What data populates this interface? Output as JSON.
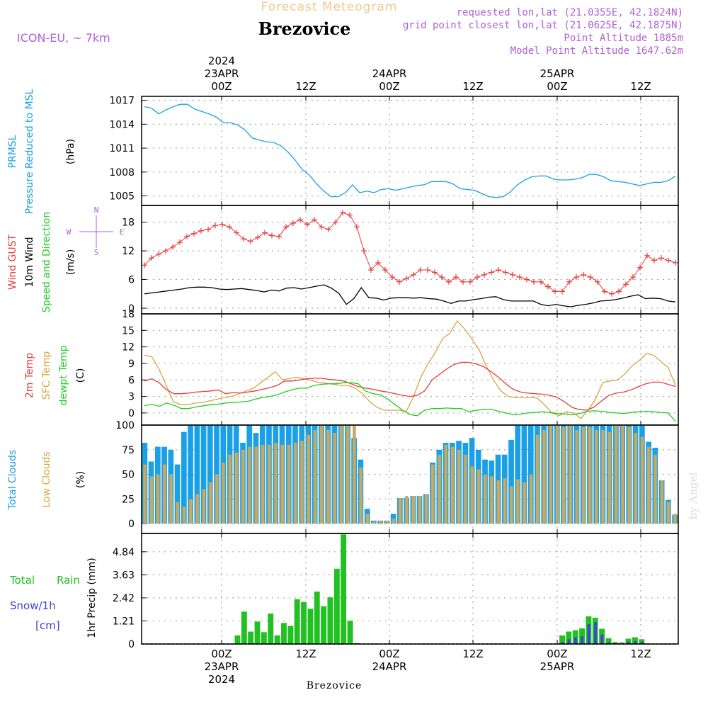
{
  "header": {
    "subtitle": "Forecast Meteogram",
    "location": "Brezovice",
    "model": "ICON-EU, ~ 7km",
    "requested": "requested lon,lat (21.0355E, 42.1824N)",
    "gridpoint": "grid point closest lon,lat (21.0625E, 42.1875N)",
    "point_altitude": "Point Altitude 1885m",
    "model_altitude": "Model Point Altitude 1647.62m"
  },
  "time_axis": {
    "ticks": [
      "00Z",
      "12Z",
      "00Z",
      "12Z",
      "00Z",
      "12Z"
    ],
    "dates": [
      "23APR",
      "24APR",
      "25APR"
    ],
    "year": "2024"
  },
  "footer_label": "Brezovice",
  "watermark": "by Angel",
  "colors": {
    "pressure": "#1aa0e6",
    "gust": "#e63c3c",
    "wind": "#000000",
    "temp2m": "#e63c3c",
    "sfc": "#daa540",
    "dewpt": "#22cc22",
    "total_clouds": "#1aa0e6",
    "low_clouds": "#c9a860",
    "rain": "#22c122",
    "snow": "#4040e0",
    "label_purple": "#b060d8"
  },
  "chart_data": [
    {
      "type": "line",
      "panel": "pressure",
      "ylabels": [
        "PRMSL",
        "Pressure Reduced to MSL",
        "(hPa)"
      ],
      "yticks": [
        "1017",
        "1014",
        "1011",
        "1008",
        "1005"
      ],
      "ylim": [
        1003.8,
        1017.5
      ],
      "series": [
        {
          "name": "PRMSL",
          "values": [
            1016.2,
            1016.0,
            1015.3,
            1015.8,
            1016.2,
            1016.5,
            1016.5,
            1015.9,
            1015.6,
            1015.3,
            1014.9,
            1014.2,
            1014.2,
            1013.9,
            1013.3,
            1012.3,
            1012.0,
            1011.8,
            1011.7,
            1011.3,
            1010.5,
            1009.5,
            1008.3,
            1007.6,
            1006.5,
            1005.6,
            1004.9,
            1004.9,
            1005.4,
            1006.4,
            1005.4,
            1005.6,
            1005.4,
            1005.8,
            1005.9,
            1005.7,
            1005.9,
            1006.1,
            1006.3,
            1006.4,
            1006.8,
            1006.8,
            1006.8,
            1006.5,
            1005.9,
            1005.8,
            1005.7,
            1005.3,
            1004.9,
            1004.8,
            1004.9,
            1005.5,
            1006.4,
            1007.0,
            1007.4,
            1007.5,
            1007.5,
            1007.1,
            1007.0,
            1007.0,
            1007.1,
            1007.3,
            1007.7,
            1007.7,
            1007.4,
            1006.9,
            1006.8,
            1006.7,
            1006.5,
            1006.3,
            1006.5,
            1006.7,
            1006.7,
            1006.9,
            1007.5
          ]
        }
      ]
    },
    {
      "type": "line",
      "panel": "wind",
      "ylabels": [
        "Wind GUST",
        "10m Wind",
        "Speed and Direction",
        "(m/s)"
      ],
      "compass": [
        "N",
        "W",
        "E",
        "S"
      ],
      "yticks": [
        "18",
        "12",
        "6",
        "0"
      ],
      "ylim": [
        0,
        21.5
      ],
      "series": [
        {
          "name": "Wind GUST",
          "values": [
            9.0,
            10.5,
            11.3,
            12.0,
            12.8,
            13.8,
            15.0,
            15.6,
            16.2,
            16.5,
            17.3,
            17.5,
            17.0,
            15.8,
            14.5,
            14.0,
            14.8,
            15.8,
            15.2,
            15.0,
            17.0,
            17.8,
            18.5,
            17.5,
            18.5,
            17.0,
            16.5,
            18.0,
            20.0,
            19.5,
            17.0,
            12.0,
            8.0,
            9.5,
            8.0,
            6.5,
            5.5,
            6.2,
            7.0,
            8.0,
            8.0,
            7.5,
            6.5,
            5.5,
            6.5,
            5.5,
            5.5,
            6.5,
            7.0,
            7.5,
            8.0,
            7.5,
            7.0,
            6.5,
            6.0,
            5.5,
            5.5,
            4.5,
            3.5,
            3.5,
            5.5,
            6.5,
            7.0,
            6.5,
            5.5,
            3.5,
            3.0,
            3.5,
            5.0,
            6.5,
            8.5,
            11.0,
            10.0,
            10.5,
            10.0,
            9.5
          ]
        },
        {
          "name": "10m Wind",
          "values": [
            3.0,
            3.2,
            3.4,
            3.6,
            3.8,
            4.0,
            4.3,
            4.4,
            4.4,
            4.3,
            4.0,
            3.9,
            4.0,
            4.1,
            3.9,
            3.7,
            3.4,
            3.8,
            3.6,
            4.2,
            4.3,
            4.0,
            4.3,
            4.6,
            4.9,
            4.2,
            3.1,
            0.8,
            2.0,
            4.3,
            2.2,
            2.1,
            1.7,
            2.1,
            2.2,
            2.2,
            2.1,
            2.2,
            2.0,
            1.9,
            1.5,
            1.0,
            1.5,
            1.5,
            1.8,
            2.0,
            2.3,
            2.4,
            1.8,
            1.5,
            1.5,
            1.5,
            1.5,
            0.8,
            0.5,
            0.8,
            0.5,
            0.3,
            0.6,
            0.8,
            1.1,
            1.5,
            1.6,
            1.8,
            2.1,
            2.5,
            2.8,
            2.0,
            2.1,
            2.0,
            1.5,
            1.3
          ]
        }
      ]
    },
    {
      "type": "line",
      "panel": "temperature",
      "ylabels": [
        "2m Temp",
        "SFC Temp",
        "dewpt Temp",
        "(C)"
      ],
      "yticks": [
        "18",
        "15",
        "12",
        "9",
        "6",
        "3",
        "0"
      ],
      "ylim": [
        -2.2,
        18
      ],
      "series": [
        {
          "name": "2m Temp",
          "values": [
            5.8,
            6.2,
            5.5,
            4.2,
            3.5,
            3.5,
            3.6,
            3.8,
            3.9,
            4.0,
            4.2,
            3.5,
            3.7,
            3.6,
            3.8,
            4.0,
            4.3,
            4.6,
            5.0,
            5.8,
            5.8,
            6.0,
            6.2,
            6.3,
            6.3,
            6.1,
            6.0,
            5.8,
            5.3,
            4.8,
            4.5,
            4.3,
            4.0,
            3.8,
            3.5,
            3.2,
            3.0,
            3.2,
            4.0,
            6.0,
            7.0,
            8.0,
            8.8,
            9.2,
            9.2,
            8.9,
            8.4,
            7.5,
            6.5,
            5.3,
            4.3,
            3.8,
            3.6,
            3.5,
            3.4,
            3.2,
            2.8,
            2.0,
            1.0,
            0.6,
            0.5,
            1.1,
            2.2,
            3.2,
            3.6,
            3.8,
            4.2,
            4.8,
            5.3,
            5.6,
            5.6,
            5.2,
            4.8
          ]
        },
        {
          "name": "SFC Temp",
          "values": [
            10.5,
            10.2,
            8.0,
            5.0,
            2.0,
            1.5,
            1.5,
            1.8,
            1.9,
            2.2,
            2.5,
            2.8,
            3.0,
            3.5,
            4.0,
            4.5,
            5.5,
            6.5,
            7.5,
            6.0,
            6.3,
            6.5,
            6.2,
            5.9,
            5.5,
            5.4,
            5.2,
            5.0,
            5.0,
            4.5,
            3.5,
            2.0,
            1.0,
            0.5,
            0.5,
            0.5,
            0.3,
            3.0,
            6.5,
            9.0,
            11.0,
            13.5,
            14.5,
            16.7,
            15.3,
            13.5,
            11.5,
            8.5,
            6.0,
            4.0,
            3.0,
            2.8,
            2.8,
            2.8,
            2.7,
            1.5,
            0.0,
            -0.5,
            0.2,
            0.0,
            -1.0,
            0.5,
            2.5,
            5.5,
            5.8,
            6.0,
            7.0,
            8.5,
            9.5,
            10.8,
            10.5,
            9.3,
            8.3,
            5.0
          ]
        },
        {
          "name": "dewpt Temp",
          "values": [
            1.3,
            1.6,
            1.2,
            1.8,
            1.4,
            0.8,
            0.8,
            1.1,
            1.3,
            1.5,
            1.6,
            1.8,
            1.9,
            2.0,
            2.1,
            2.5,
            2.8,
            3.0,
            3.3,
            3.8,
            4.2,
            4.5,
            4.5,
            5.0,
            5.2,
            5.3,
            5.3,
            5.5,
            5.5,
            5.3,
            4.0,
            3.5,
            3.3,
            2.5,
            1.5,
            0.5,
            -0.3,
            -0.5,
            0.5,
            0.8,
            0.8,
            0.9,
            0.8,
            0.8,
            0.2,
            0.5,
            0.6,
            0.7,
            0.3,
            0.0,
            -0.3,
            -0.2,
            0.0,
            0.1,
            0.2,
            0.1,
            -0.1,
            -0.2,
            -0.3,
            -0.1,
            0.3,
            0.4,
            0.3,
            0.1,
            0.0,
            -0.1,
            0.1,
            0.2,
            0.3,
            0.2,
            0.1,
            0.0,
            -1.5
          ]
        }
      ]
    },
    {
      "type": "bar",
      "panel": "clouds",
      "ylabels": [
        "Total Clouds",
        "Low Clouds",
        "(%)"
      ],
      "yticks": [
        "100",
        "75",
        "50",
        "25",
        "0"
      ],
      "ylim": [
        -10,
        100
      ],
      "series": [
        {
          "name": "Total Clouds",
          "values": [
            82,
            63,
            78,
            78,
            75,
            60,
            93,
            100,
            100,
            100,
            100,
            100,
            100,
            100,
            100,
            82,
            100,
            92,
            100,
            100,
            100,
            100,
            100,
            100,
            100,
            100,
            100,
            100,
            100,
            100,
            100,
            100,
            87,
            65,
            15,
            3,
            3,
            3,
            10,
            26,
            26,
            28,
            28,
            30,
            62,
            75,
            82,
            82,
            84,
            82,
            87,
            75,
            65,
            64,
            70,
            70,
            85,
            100,
            100,
            100,
            100,
            100,
            100,
            100,
            100,
            100,
            100,
            100,
            100,
            100,
            100,
            100,
            100,
            100,
            100,
            100,
            100,
            83,
            77,
            44,
            24,
            9
          ]
        },
        {
          "name": "Low Clouds",
          "values": [
            60,
            48,
            50,
            60,
            50,
            22,
            17,
            25,
            30,
            35,
            42,
            50,
            62,
            70,
            72,
            75,
            78,
            78,
            80,
            80,
            82,
            80,
            80,
            82,
            84,
            90,
            95,
            100,
            95,
            92,
            100,
            100,
            100,
            57,
            10,
            2,
            3,
            3,
            5,
            26,
            28,
            28,
            28,
            30,
            60,
            70,
            80,
            78,
            75,
            70,
            58,
            55,
            50,
            48,
            44,
            46,
            38,
            45,
            42,
            50,
            90,
            95,
            100,
            100,
            98,
            100,
            95,
            98,
            98,
            95,
            95,
            93,
            100,
            100,
            98,
            92,
            88,
            78,
            70,
            44,
            22,
            10
          ]
        }
      ]
    },
    {
      "type": "bar",
      "panel": "precipitation",
      "ylabels": [
        "Total",
        "Rain",
        "Snow/1h",
        "[cm]",
        "1hr Precip (mm)"
      ],
      "yticks": [
        "4.84",
        "3.63",
        "2.42",
        "1.21",
        "0"
      ],
      "ylim": [
        0,
        5.8
      ],
      "series": [
        {
          "name": "Total Rain",
          "values": [
            0,
            0,
            0,
            0,
            0,
            0,
            0,
            0,
            0,
            0,
            0,
            0,
            0,
            0,
            0.45,
            1.7,
            0.65,
            1.18,
            0.62,
            1.6,
            0.45,
            1.1,
            0.95,
            2.35,
            2.2,
            1.85,
            2.75,
            1.98,
            2.45,
            3.95,
            5.75,
            1.22,
            0.05,
            0,
            0,
            0,
            0,
            0,
            0,
            0,
            0,
            0,
            0,
            0,
            0,
            0,
            0,
            0,
            0,
            0,
            0,
            0,
            0,
            0,
            0,
            0,
            0,
            0,
            0,
            0,
            0,
            0,
            0.02,
            0.45,
            0.65,
            0.72,
            0.82,
            1.45,
            1.38,
            0.8,
            0.3,
            0.1,
            0.08,
            0.28,
            0.35,
            0.25,
            0,
            0,
            0,
            0,
            0
          ]
        },
        {
          "name": "Snow/1h",
          "values": [
            0,
            0,
            0,
            0,
            0,
            0,
            0,
            0,
            0,
            0,
            0,
            0,
            0,
            0,
            0,
            0,
            0,
            0,
            0,
            0,
            0,
            0,
            0,
            0,
            0,
            0,
            0,
            0,
            0,
            0,
            0,
            0,
            0,
            0,
            0,
            0,
            0,
            0,
            0,
            0,
            0,
            0,
            0,
            0,
            0,
            0,
            0,
            0,
            0,
            0,
            0,
            0,
            0,
            0,
            0,
            0,
            0,
            0,
            0,
            0,
            0,
            0,
            0,
            0.1,
            0.25,
            0.35,
            0.4,
            1.05,
            1.15,
            0.5,
            0.1,
            0.05,
            0.03,
            0.12,
            0.15,
            0.12,
            0,
            0,
            0,
            0,
            0
          ]
        }
      ]
    }
  ]
}
